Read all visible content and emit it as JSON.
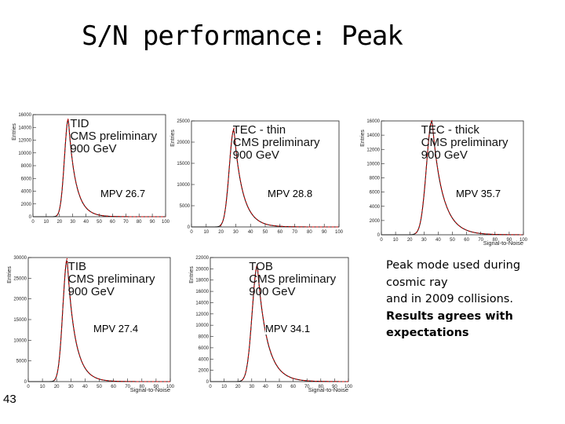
{
  "slide": {
    "title": "S/N performance: Peak",
    "number": "43",
    "notes": [
      "Peak mode used during",
      "cosmic ray",
      "and in 2009 collisions."
    ],
    "notes_bold": [
      "Results agrees with",
      "expectations"
    ]
  },
  "chart_data": [
    {
      "type": "histogram",
      "id": "tid",
      "label_lines": [
        "TID",
        "CMS preliminary",
        "900 GeV"
      ],
      "ylabel": "Entries",
      "xlabel": "",
      "mpv_label": "MPV 26.7",
      "mpv": 26.7,
      "xlim": [
        0,
        100
      ],
      "ylim": [
        0,
        16000
      ],
      "yticks": [
        0,
        2000,
        4000,
        6000,
        8000,
        10000,
        12000,
        14000,
        16000
      ],
      "xticks": [
        0,
        10,
        20,
        30,
        40,
        50,
        60,
        70,
        80,
        90,
        100
      ],
      "peak": 15300,
      "colors": {
        "data": "#1a1a1a",
        "fit": "#cc0000"
      }
    },
    {
      "type": "histogram",
      "id": "tec-thin",
      "label_lines": [
        "TEC - thin",
        "CMS preliminary",
        "900 GeV"
      ],
      "ylabel": "Entries",
      "xlabel": "",
      "mpv_label": "MPV 28.8",
      "mpv": 28.8,
      "xlim": [
        0,
        100
      ],
      "ylim": [
        0,
        25000
      ],
      "yticks": [
        0,
        5000,
        10000,
        15000,
        20000,
        25000
      ],
      "xticks": [
        0,
        10,
        20,
        30,
        40,
        50,
        60,
        70,
        80,
        90,
        100
      ],
      "peak": 23000,
      "colors": {
        "data": "#1a1a1a",
        "fit": "#cc0000"
      }
    },
    {
      "type": "histogram",
      "id": "tec-thick",
      "label_lines": [
        "TEC - thick",
        "CMS preliminary",
        "900 GeV"
      ],
      "ylabel": "Entries",
      "xlabel": "Signal-to-Noise",
      "mpv_label": "MPV 35.7",
      "mpv": 35.7,
      "xlim": [
        0,
        100
      ],
      "ylim": [
        0,
        16000
      ],
      "yticks": [
        0,
        2000,
        4000,
        6000,
        8000,
        10000,
        12000,
        14000,
        16000
      ],
      "xticks": [
        0,
        10,
        20,
        30,
        40,
        50,
        60,
        70,
        80,
        90,
        100
      ],
      "peak": 16000,
      "colors": {
        "data": "#1a1a1a",
        "fit": "#cc0000"
      }
    },
    {
      "type": "histogram",
      "id": "tib",
      "label_lines": [
        "TIB",
        "CMS preliminary",
        "900 GeV"
      ],
      "ylabel": "Entries",
      "xlabel": "Signal-to-Noise",
      "mpv_label": "MPV 27.4",
      "mpv": 27.4,
      "xlim": [
        0,
        100
      ],
      "ylim": [
        0,
        30000
      ],
      "yticks": [
        0,
        5000,
        10000,
        15000,
        20000,
        25000,
        30000
      ],
      "xticks": [
        0,
        10,
        20,
        30,
        40,
        50,
        60,
        70,
        80,
        90,
        100
      ],
      "peak": 29500,
      "colors": {
        "data": "#1a1a1a",
        "fit": "#cc0000"
      }
    },
    {
      "type": "histogram",
      "id": "tob",
      "label_lines": [
        "TOB",
        "CMS preliminary",
        "900 GeV"
      ],
      "ylabel": "Entries",
      "xlabel": "Signal-to-Noise",
      "mpv_label": "MPV 34.1",
      "mpv": 34.1,
      "xlim": [
        0,
        100
      ],
      "ylim": [
        0,
        22000
      ],
      "yticks": [
        0,
        2000,
        4000,
        6000,
        8000,
        10000,
        12000,
        14000,
        16000,
        18000,
        20000,
        22000
      ],
      "xticks": [
        0,
        10,
        20,
        30,
        40,
        50,
        60,
        70,
        80,
        90,
        100
      ],
      "peak": 20500,
      "colors": {
        "data": "#1a1a1a",
        "fit": "#cc0000"
      }
    }
  ]
}
